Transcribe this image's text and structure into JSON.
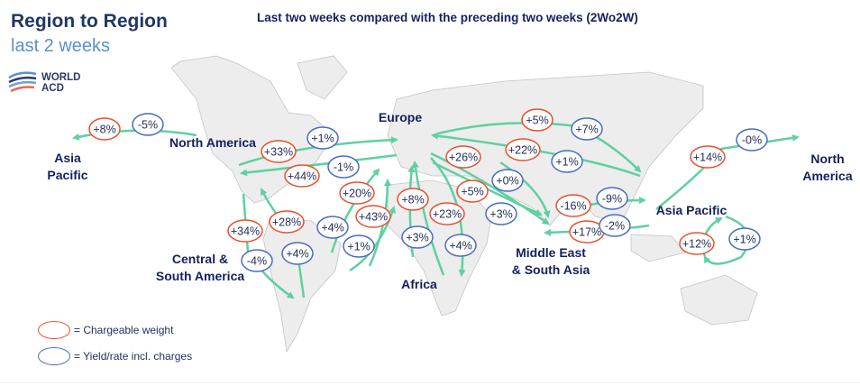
{
  "title": "Region to Region",
  "subtitle": "last 2 weeks",
  "header": "Last two weeks compared with the preceding two weeks (2Wo2W)",
  "logo": {
    "line1": "WORLD",
    "line2": "ACD"
  },
  "colors": {
    "chargeable": "#e8502f",
    "yield": "#4a6cc4",
    "arrow": "#5fd0a0",
    "land": "#ededed",
    "text": "#14215e"
  },
  "regions": [
    {
      "id": "ap-left",
      "lines": [
        "Asia",
        "Pacific"
      ]
    },
    {
      "id": "na",
      "lines": [
        "North America"
      ]
    },
    {
      "id": "eu",
      "lines": [
        "Europe"
      ]
    },
    {
      "id": "na-right",
      "lines": [
        "North",
        "America"
      ]
    },
    {
      "id": "ap",
      "lines": [
        "Asia Pacific"
      ]
    },
    {
      "id": "csa",
      "lines": [
        "Central &",
        "South America"
      ]
    },
    {
      "id": "af",
      "lines": [
        "Africa"
      ]
    },
    {
      "id": "mesa",
      "lines": [
        "Middle East",
        "& South Asia"
      ]
    }
  ],
  "values": [
    {
      "label": "+8%",
      "type": "chargeable"
    },
    {
      "label": "-5%",
      "type": "yield"
    },
    {
      "label": "+33%",
      "type": "chargeable"
    },
    {
      "label": "+1%",
      "type": "yield"
    },
    {
      "label": "+44%",
      "type": "chargeable"
    },
    {
      "label": "-1%",
      "type": "yield"
    },
    {
      "label": "+20%",
      "type": "chargeable"
    },
    {
      "label": "+8%",
      "type": "chargeable"
    },
    {
      "label": "+43%",
      "type": "chargeable"
    },
    {
      "label": "+4%",
      "type": "yield"
    },
    {
      "label": "+1%",
      "type": "yield"
    },
    {
      "label": "+34%",
      "type": "chargeable"
    },
    {
      "label": "+28%",
      "type": "chargeable"
    },
    {
      "label": "+4%",
      "type": "yield"
    },
    {
      "label": "-4%",
      "type": "yield"
    },
    {
      "label": "+23%",
      "type": "chargeable"
    },
    {
      "label": "+3%",
      "type": "yield"
    },
    {
      "label": "+4%",
      "type": "yield"
    },
    {
      "label": "+5%",
      "type": "chargeable"
    },
    {
      "label": "+26%",
      "type": "chargeable"
    },
    {
      "label": "+0%",
      "type": "yield"
    },
    {
      "label": "+3%",
      "type": "yield"
    },
    {
      "label": "+5%",
      "type": "chargeable"
    },
    {
      "label": "+7%",
      "type": "yield"
    },
    {
      "label": "+22%",
      "type": "chargeable"
    },
    {
      "label": "+1%",
      "type": "yield"
    },
    {
      "label": "-16%",
      "type": "chargeable"
    },
    {
      "label": "-9%",
      "type": "yield"
    },
    {
      "label": "+17%",
      "type": "chargeable"
    },
    {
      "label": "-2%",
      "type": "yield"
    },
    {
      "label": "+14%",
      "type": "chargeable"
    },
    {
      "label": "-0%",
      "type": "yield"
    },
    {
      "label": "+12%",
      "type": "chargeable"
    },
    {
      "label": "+1%",
      "type": "yield"
    }
  ],
  "legend": {
    "chargeable": "= Chargeable weight",
    "yield": "= Yield/rate incl. charges"
  }
}
